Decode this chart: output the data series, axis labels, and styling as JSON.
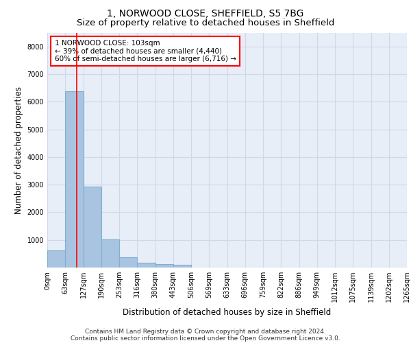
{
  "title_line1": "1, NORWOOD CLOSE, SHEFFIELD, S5 7BG",
  "title_line2": "Size of property relative to detached houses in Sheffield",
  "xlabel": "Distribution of detached houses by size in Sheffield",
  "ylabel": "Number of detached properties",
  "bar_values": [
    620,
    6390,
    2920,
    1010,
    380,
    175,
    120,
    90,
    0,
    0,
    0,
    0,
    0,
    0,
    0,
    0,
    0,
    0,
    0,
    0
  ],
  "x_labels": [
    "0sqm",
    "63sqm",
    "127sqm",
    "190sqm",
    "253sqm",
    "316sqm",
    "380sqm",
    "443sqm",
    "506sqm",
    "569sqm",
    "633sqm",
    "696sqm",
    "759sqm",
    "822sqm",
    "886sqm",
    "949sqm",
    "1012sqm",
    "1075sqm",
    "1139sqm",
    "1202sqm",
    "1265sqm"
  ],
  "bar_color": "#a8c4e0",
  "bar_edge_color": "#7fafd0",
  "bar_linewidth": 0.8,
  "vline_color": "red",
  "vline_linewidth": 1.2,
  "vline_x": 1.625,
  "annotation_text": "1 NORWOOD CLOSE: 103sqm\n← 39% of detached houses are smaller (4,440)\n60% of semi-detached houses are larger (6,716) →",
  "annotation_box_edgecolor": "red",
  "annotation_box_facecolor": "white",
  "ylim": [
    0,
    8500
  ],
  "yticks": [
    0,
    1000,
    2000,
    3000,
    4000,
    5000,
    6000,
    7000,
    8000
  ],
  "grid_color": "#d0d8e8",
  "background_color": "#e8eef8",
  "footer_line1": "Contains HM Land Registry data © Crown copyright and database right 2024.",
  "footer_line2": "Contains public sector information licensed under the Open Government Licence v3.0.",
  "title_fontsize": 10,
  "subtitle_fontsize": 9.5,
  "tick_fontsize": 7,
  "ylabel_fontsize": 8.5,
  "xlabel_fontsize": 8.5,
  "annotation_fontsize": 7.5,
  "footer_fontsize": 6.5
}
